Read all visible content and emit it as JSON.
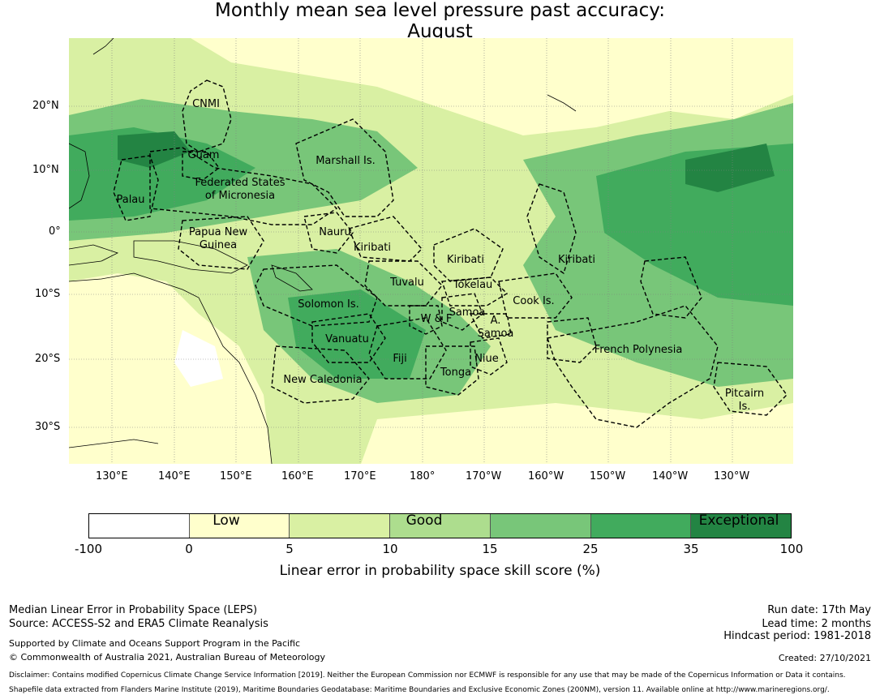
{
  "title": {
    "line1": "Monthly mean sea level pressure past accuracy:",
    "line2": "August"
  },
  "map": {
    "lon_labels": [
      "130°E",
      "140°E",
      "150°E",
      "160°E",
      "170°E",
      "180°",
      "170°W",
      "160°W",
      "150°W",
      "140°W",
      "130°W"
    ],
    "lat_labels": [
      "20°N",
      "10°N",
      "0°",
      "10°S",
      "20°S",
      "30°S"
    ],
    "countries": [
      {
        "name": "CNMI"
      },
      {
        "name": "Guam"
      },
      {
        "name": "Marshall Is."
      },
      {
        "name": "Federated States"
      },
      {
        "name": "of Micronesia"
      },
      {
        "name": "Palau"
      },
      {
        "name": "Papua New"
      },
      {
        "name": "Guinea"
      },
      {
        "name": "Nauru"
      },
      {
        "name": "Kiribati"
      },
      {
        "name": "Kiribati"
      },
      {
        "name": "Kiribati"
      },
      {
        "name": "Tuvalu"
      },
      {
        "name": "Tokelau"
      },
      {
        "name": "Solomon Is."
      },
      {
        "name": "Cook Is."
      },
      {
        "name": "Samoa"
      },
      {
        "name": "W & F"
      },
      {
        "name": "A."
      },
      {
        "name": "Samoa"
      },
      {
        "name": "Vanuatu"
      },
      {
        "name": "Fiji"
      },
      {
        "name": "Niue"
      },
      {
        "name": "French Polynesia"
      },
      {
        "name": "New Caledonia"
      },
      {
        "name": "Tonga"
      },
      {
        "name": "Pitcairn"
      },
      {
        "name": "Is."
      }
    ],
    "colors": {
      "white": "#ffffff",
      "low": "#ffffcc",
      "lightgreen": "#d9f0a3",
      "green1": "#addd8e",
      "green2": "#78c679",
      "green3": "#41ab5d",
      "green4": "#238443",
      "border": "#000000",
      "grid": "#808080"
    }
  },
  "colorbar": {
    "ticks": [
      "-100",
      "0",
      "5",
      "10",
      "15",
      "25",
      "35",
      "100"
    ],
    "categories": [
      "Low",
      "Good",
      "Exceptional"
    ],
    "label": "Linear error in probability space skill score (%)",
    "segments": [
      "#ffffff",
      "#ffffcc",
      "#d9f0a3",
      "#addd8e",
      "#78c679",
      "#41ab5d",
      "#238443"
    ]
  },
  "footer": {
    "left1": "Median Linear Error in Probability Space (LEPS)",
    "left2": "Source: ACCESS-S2 and ERA5 Climate Reanalysis",
    "left3": "Supported by Climate and Oceans Support Program in the Pacific",
    "left4": "© Commonwealth of Australia 2021, Australian Bureau of Meteorology",
    "right1": "Run date: 17th May",
    "right2": "Lead time: 2 months",
    "right3": "Hindcast period: 1981-2018",
    "right4": "Created: 27/10/2021",
    "disclaimer1": "Disclaimer: Contains modified Copernicus Climate Change Service Information [2019]. Neither the European Commission nor ECMWF is responsible for any use that may be made of the Copernicus Information or Data it contains.",
    "disclaimer2": "Shapefile data extracted from Flanders Marine Institute (2019), Maritime Boundaries Geodatabase: Maritime Boundaries and Exclusive Economic Zones (200NM), version 11. Available online at http://www.marineregions.org/."
  }
}
